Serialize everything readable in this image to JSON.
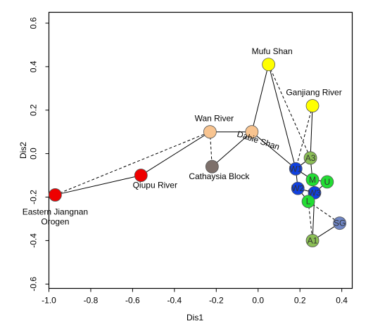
{
  "chart_data": {
    "type": "scatter",
    "title": "",
    "xlabel": "Dis1",
    "ylabel": "Dis2",
    "xlim": [
      -1.0,
      0.45
    ],
    "ylim": [
      -0.62,
      0.65
    ],
    "x_ticks": [
      -1.0,
      -0.8,
      -0.6,
      -0.4,
      -0.2,
      0.0,
      0.2,
      0.4
    ],
    "x_tick_labels": [
      "-1.0",
      "-0.8",
      "-0.6",
      "-0.4",
      "-0.2",
      "0.0",
      "0.2",
      "0.4"
    ],
    "y_ticks": [
      -0.6,
      -0.4,
      -0.2,
      0.0,
      0.2,
      0.4,
      0.6
    ],
    "y_tick_labels": [
      "-0.6",
      "-0.4",
      "-0.2",
      "0.0",
      "0.2",
      "0.4",
      "0.6"
    ],
    "points": [
      {
        "id": "EJO",
        "x": -0.97,
        "y": -0.19,
        "color": "#ee0000",
        "label": "",
        "display_label": [
          "Eastern Jiangnan",
          "Orogen"
        ]
      },
      {
        "id": "QR",
        "x": -0.56,
        "y": -0.1,
        "color": "#ee0000",
        "label": "",
        "display_label": [
          "Qiupu River"
        ]
      },
      {
        "id": "WR",
        "x": -0.23,
        "y": 0.1,
        "color": "#f8c490",
        "label": "",
        "display_label": [
          "Wan River"
        ]
      },
      {
        "id": "CB",
        "x": -0.22,
        "y": -0.06,
        "color": "#7d706b",
        "label": "",
        "display_label": [
          "Cathaysia Block"
        ]
      },
      {
        "id": "DS",
        "x": -0.03,
        "y": 0.1,
        "color": "#f8c490",
        "label": "",
        "display_label": [
          "Dabie Shan"
        ]
      },
      {
        "id": "MS",
        "x": 0.05,
        "y": 0.41,
        "color": "#ffff00",
        "label": "",
        "display_label": [
          "Mufu Shan"
        ]
      },
      {
        "id": "GR",
        "x": 0.26,
        "y": 0.22,
        "color": "#ffff00",
        "label": "",
        "display_label": [
          "Ganjiang River"
        ]
      },
      {
        "id": "W1",
        "x": 0.18,
        "y": -0.07,
        "color": "#1040e0",
        "label": "W1",
        "display_label": []
      },
      {
        "id": "A3",
        "x": 0.25,
        "y": -0.02,
        "color": "#8bbf55",
        "label": "A3",
        "display_label": []
      },
      {
        "id": "M",
        "x": 0.26,
        "y": -0.12,
        "color": "#22dd33",
        "label": "M",
        "display_label": []
      },
      {
        "id": "U",
        "x": 0.33,
        "y": -0.13,
        "color": "#22dd33",
        "label": "U",
        "display_label": []
      },
      {
        "id": "W2",
        "x": 0.19,
        "y": -0.16,
        "color": "#1040e0",
        "label": "W2",
        "display_label": []
      },
      {
        "id": "W3",
        "x": 0.27,
        "y": -0.18,
        "color": "#1040e0",
        "label": "W3",
        "display_label": []
      },
      {
        "id": "L",
        "x": 0.24,
        "y": -0.22,
        "color": "#22dd33",
        "label": "L",
        "display_label": []
      },
      {
        "id": "SG",
        "x": 0.39,
        "y": -0.32,
        "color": "#6f86c6",
        "label": "SG",
        "display_label": []
      },
      {
        "id": "A1",
        "x": 0.26,
        "y": -0.4,
        "color": "#8bbf55",
        "label": "A1",
        "display_label": []
      }
    ],
    "edges": [
      {
        "from": "EJO",
        "to": "QR",
        "style": "solid"
      },
      {
        "from": "EJO",
        "to": "WR",
        "style": "dashed"
      },
      {
        "from": "QR",
        "to": "WR",
        "style": "solid"
      },
      {
        "from": "WR",
        "to": "DS",
        "style": "solid"
      },
      {
        "from": "WR",
        "to": "CB",
        "style": "dashed"
      },
      {
        "from": "CB",
        "to": "DS",
        "style": "solid"
      },
      {
        "from": "DS",
        "to": "MS",
        "style": "solid"
      },
      {
        "from": "DS",
        "to": "W1",
        "style": "solid"
      },
      {
        "from": "MS",
        "to": "W1",
        "style": "solid"
      },
      {
        "from": "MS",
        "to": "A3",
        "style": "dashed"
      },
      {
        "from": "GR",
        "to": "A3",
        "style": "solid"
      },
      {
        "from": "GR",
        "to": "W1",
        "style": "dashed"
      },
      {
        "from": "W1",
        "to": "A3",
        "style": "solid"
      },
      {
        "from": "A3",
        "to": "M",
        "style": "solid"
      },
      {
        "from": "W1",
        "to": "M",
        "style": "solid"
      },
      {
        "from": "W1",
        "to": "W2",
        "style": "solid"
      },
      {
        "from": "M",
        "to": "U",
        "style": "solid"
      },
      {
        "from": "M",
        "to": "W3",
        "style": "solid"
      },
      {
        "from": "W2",
        "to": "W3",
        "style": "solid"
      },
      {
        "from": "W2",
        "to": "L",
        "style": "solid"
      },
      {
        "from": "W3",
        "to": "L",
        "style": "solid"
      },
      {
        "from": "U",
        "to": "W3",
        "style": "solid"
      },
      {
        "from": "L",
        "to": "SG",
        "style": "dashed"
      },
      {
        "from": "L",
        "to": "A1",
        "style": "dashed"
      },
      {
        "from": "W3",
        "to": "A1",
        "style": "solid"
      },
      {
        "from": "SG",
        "to": "A1",
        "style": "solid"
      }
    ],
    "grid": false,
    "legend": "none"
  }
}
